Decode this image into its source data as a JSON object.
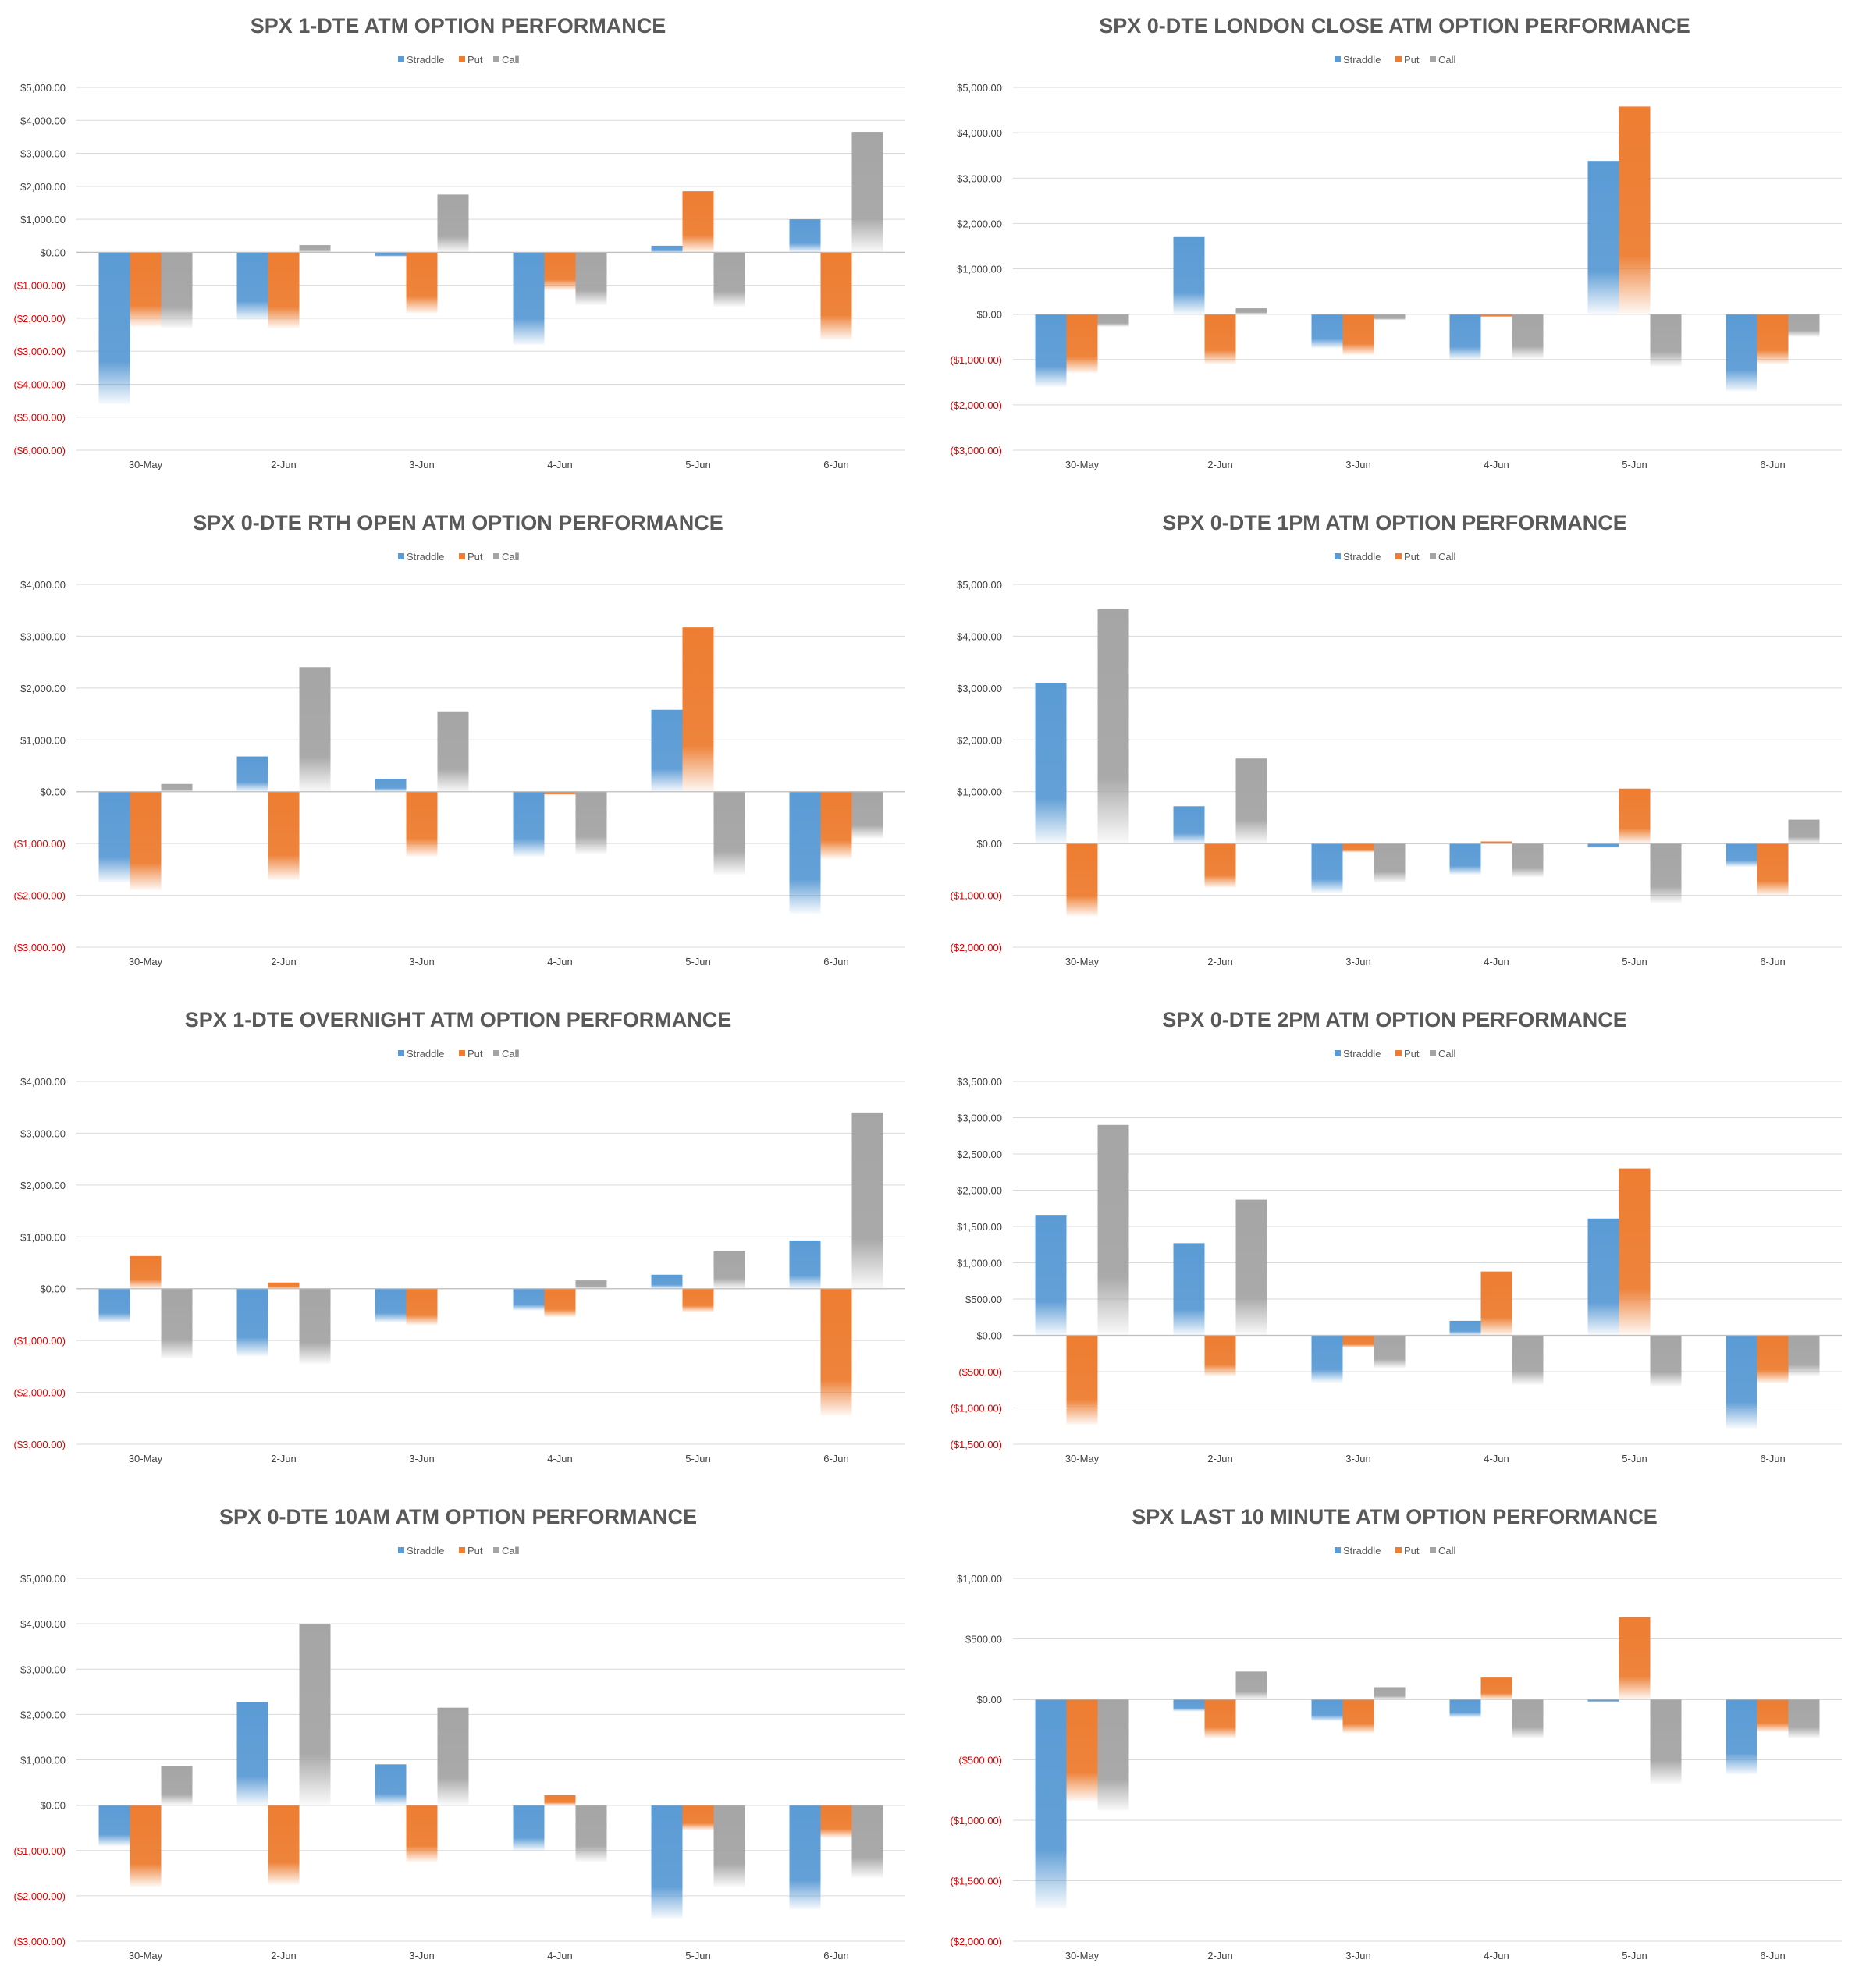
{
  "chart_data": [
    {
      "type": "bar",
      "title": "SPX 1-DTE ATM OPTION PERFORMANCE",
      "categories": [
        "30-May",
        "2-Jun",
        "3-Jun",
        "4-Jun",
        "5-Jun",
        "6-Jun"
      ],
      "series": [
        {
          "name": "Straddle",
          "values": [
            -4600,
            -2050,
            -130,
            -2800,
            200,
            1000
          ]
        },
        {
          "name": "Put",
          "values": [
            -2250,
            -2300,
            -1850,
            -1150,
            1850,
            -2650
          ]
        },
        {
          "name": "Call",
          "values": [
            -2300,
            220,
            1750,
            -1600,
            -1650,
            3650
          ]
        }
      ],
      "ylim": [
        -6000,
        5000
      ],
      "yticks": [
        5000,
        4000,
        3000,
        2000,
        1000,
        0,
        -1000,
        -2000,
        -3000,
        -4000,
        -5000,
        -6000
      ],
      "ytick_labels": [
        "$5,000.00",
        "$4,000.00",
        "$3,000.00",
        "$2,000.00",
        "$1,000.00",
        "$0.00",
        "($1,000.00)",
        "($2,000.00)",
        "($3,000.00)",
        "($4,000.00)",
        "($5,000.00)",
        "($6,000.00)"
      ],
      "xlabel": "",
      "ylabel": "",
      "grid": true,
      "legend": "top-center"
    },
    {
      "type": "bar",
      "title": "SPX 0-DTE  LONDON CLOSE ATM OPTION PERFORMANCE",
      "categories": [
        "30-May",
        "2-Jun",
        "3-Jun",
        "4-Jun",
        "5-Jun",
        "6-Jun"
      ],
      "series": [
        {
          "name": "Straddle",
          "values": [
            -1600,
            1700,
            -750,
            -1000,
            3380,
            -1700
          ]
        },
        {
          "name": "Put",
          "values": [
            -1300,
            -1100,
            -900,
            -60,
            4580,
            -1100
          ]
        },
        {
          "name": "Call",
          "values": [
            -280,
            130,
            -130,
            -980,
            -1150,
            -500
          ]
        }
      ],
      "ylim": [
        -3000,
        5000
      ],
      "yticks": [
        5000,
        4000,
        3000,
        2000,
        1000,
        0,
        -1000,
        -2000,
        -3000
      ],
      "ytick_labels": [
        "$5,000.00",
        "$4,000.00",
        "$3,000.00",
        "$2,000.00",
        "$1,000.00",
        "$0.00",
        "($1,000.00)",
        "($2,000.00)",
        "($3,000.00)"
      ],
      "xlabel": "",
      "ylabel": "",
      "grid": true,
      "legend": "top-center"
    },
    {
      "type": "bar",
      "title": "SPX 0-DTE RTH OPEN ATM OPTION PERFORMANCE",
      "categories": [
        "30-May",
        "2-Jun",
        "3-Jun",
        "4-Jun",
        "5-Jun",
        "6-Jun"
      ],
      "series": [
        {
          "name": "Straddle",
          "values": [
            -1750,
            680,
            250,
            -1250,
            1580,
            -2350
          ]
        },
        {
          "name": "Put",
          "values": [
            -1900,
            -1700,
            -1250,
            -60,
            3170,
            -1300
          ]
        },
        {
          "name": "Call",
          "values": [
            150,
            2400,
            1550,
            -1200,
            -1600,
            -900
          ]
        }
      ],
      "ylim": [
        -3000,
        4000
      ],
      "yticks": [
        4000,
        3000,
        2000,
        1000,
        0,
        -1000,
        -2000,
        -3000
      ],
      "ytick_labels": [
        "$4,000.00",
        "$3,000.00",
        "$2,000.00",
        "$1,000.00",
        "$0.00",
        "($1,000.00)",
        "($2,000.00)",
        "($3,000.00)"
      ],
      "xlabel": "",
      "ylabel": "",
      "grid": true,
      "legend": "top-center"
    },
    {
      "type": "bar",
      "title": "SPX 0-DTE 1PM ATM OPTION PERFORMANCE",
      "categories": [
        "30-May",
        "2-Jun",
        "3-Jun",
        "4-Jun",
        "5-Jun",
        "6-Jun"
      ],
      "series": [
        {
          "name": "Straddle",
          "values": [
            3100,
            720,
            -950,
            -600,
            -80,
            -450
          ]
        },
        {
          "name": "Put",
          "values": [
            -1400,
            -850,
            -170,
            40,
            1060,
            -1000
          ]
        },
        {
          "name": "Call",
          "values": [
            4520,
            1640,
            -750,
            -650,
            -1150,
            460
          ]
        }
      ],
      "ylim": [
        -2000,
        5000
      ],
      "yticks": [
        5000,
        4000,
        3000,
        2000,
        1000,
        0,
        -1000,
        -2000
      ],
      "ytick_labels": [
        "$5,000.00",
        "$4,000.00",
        "$3,000.00",
        "$2,000.00",
        "$1,000.00",
        "$0.00",
        "($1,000.00)",
        "($2,000.00)"
      ],
      "xlabel": "",
      "ylabel": "",
      "grid": true,
      "legend": "top-center"
    },
    {
      "type": "bar",
      "title": "SPX 1-DTE OVERNIGHT ATM OPTION PERFORMANCE",
      "categories": [
        "30-May",
        "2-Jun",
        "3-Jun",
        "4-Jun",
        "5-Jun",
        "6-Jun"
      ],
      "series": [
        {
          "name": "Straddle",
          "values": [
            -650,
            -1300,
            -650,
            -420,
            270,
            930
          ]
        },
        {
          "name": "Put",
          "values": [
            630,
            120,
            -700,
            -550,
            -450,
            -2450
          ]
        },
        {
          "name": "Call",
          "values": [
            -1350,
            -1450,
            0,
            160,
            720,
            3400
          ]
        }
      ],
      "ylim": [
        -3000,
        4000
      ],
      "yticks": [
        4000,
        3000,
        2000,
        1000,
        0,
        -1000,
        -2000,
        -3000
      ],
      "ytick_labels": [
        "$4,000.00",
        "$3,000.00",
        "$2,000.00",
        "$1,000.00",
        "$0.00",
        "($1,000.00)",
        "($2,000.00)",
        "($3,000.00)"
      ],
      "xlabel": "",
      "ylabel": "",
      "grid": true,
      "legend": "top-center"
    },
    {
      "type": "bar",
      "title": "SPX 0-DTE 2PM ATM OPTION PERFORMANCE",
      "categories": [
        "30-May",
        "2-Jun",
        "3-Jun",
        "4-Jun",
        "5-Jun",
        "6-Jun"
      ],
      "series": [
        {
          "name": "Straddle",
          "values": [
            1660,
            1270,
            -650,
            200,
            1610,
            -1280
          ]
        },
        {
          "name": "Put",
          "values": [
            -1230,
            -560,
            -170,
            880,
            2300,
            -660
          ]
        },
        {
          "name": "Call",
          "values": [
            2900,
            1870,
            -450,
            -680,
            -700,
            -560
          ]
        }
      ],
      "ylim": [
        -1500,
        3500
      ],
      "yticks": [
        3500,
        3000,
        2500,
        2000,
        1500,
        1000,
        500,
        0,
        -500,
        -1000,
        -1500
      ],
      "ytick_labels": [
        "$3,500.00",
        "$3,000.00",
        "$2,500.00",
        "$2,000.00",
        "$1,500.00",
        "$1,000.00",
        "$500.00",
        "$0.00",
        "($500.00)",
        "($1,000.00)",
        "($1,500.00)"
      ],
      "xlabel": "",
      "ylabel": "",
      "grid": true,
      "legend": "top-center"
    },
    {
      "type": "bar",
      "title": "SPX 0-DTE 10AM ATM OPTION PERFORMANCE",
      "categories": [
        "30-May",
        "2-Jun",
        "3-Jun",
        "4-Jun",
        "5-Jun",
        "6-Jun"
      ],
      "series": [
        {
          "name": "Straddle",
          "values": [
            -900,
            2280,
            900,
            -1000,
            -2500,
            -2300
          ]
        },
        {
          "name": "Put",
          "values": [
            -1800,
            -1750,
            -1250,
            220,
            -550,
            -720
          ]
        },
        {
          "name": "Call",
          "values": [
            860,
            4000,
            2150,
            -1250,
            -1800,
            -1600
          ]
        }
      ],
      "ylim": [
        -3000,
        5000
      ],
      "yticks": [
        5000,
        4000,
        3000,
        2000,
        1000,
        0,
        -1000,
        -2000,
        -3000
      ],
      "ytick_labels": [
        "$5,000.00",
        "$4,000.00",
        "$3,000.00",
        "$2,000.00",
        "$1,000.00",
        "$0.00",
        "($1,000.00)",
        "($2,000.00)",
        "($3,000.00)"
      ],
      "xlabel": "",
      "ylabel": "",
      "grid": true,
      "legend": "top-center"
    },
    {
      "type": "bar",
      "title": "SPX LAST 10 MINUTE ATM OPTION PERFORMANCE",
      "categories": [
        "30-May",
        "2-Jun",
        "3-Jun",
        "4-Jun",
        "5-Jun",
        "6-Jun"
      ],
      "series": [
        {
          "name": "Straddle",
          "values": [
            -1730,
            -100,
            -180,
            -150,
            -20,
            -620
          ]
        },
        {
          "name": "Put",
          "values": [
            -840,
            -320,
            -280,
            180,
            680,
            -270
          ]
        },
        {
          "name": "Call",
          "values": [
            -920,
            230,
            100,
            -320,
            -700,
            -320
          ]
        }
      ],
      "ylim": [
        -2000,
        1000
      ],
      "yticks": [
        1000,
        500,
        0,
        -500,
        -1000,
        -1500,
        -2000
      ],
      "ytick_labels": [
        "$1,000.00",
        "$500.00",
        "$0.00",
        "($500.00)",
        "($1,000.00)",
        "($1,500.00)",
        "($2,000.00)"
      ],
      "xlabel": "",
      "ylabel": "",
      "grid": true,
      "legend": "top-center"
    }
  ],
  "colors": {
    "Straddle": "#5b9bd5",
    "Put": "#ed7d31",
    "Call": "#a5a5a5",
    "grid": "#d9d9d9",
    "axis": "#bfbfbf",
    "negative_label": "#e00000",
    "title": "#595959"
  }
}
